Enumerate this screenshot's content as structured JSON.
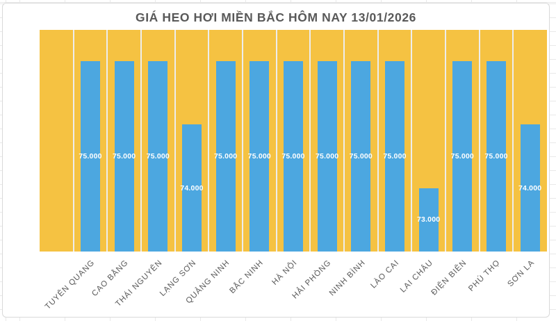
{
  "chart_data": {
    "type": "bar",
    "title": "GIÁ HEO HƠI MIỀN BẮC HÔM NAY 13/01/2026",
    "categories": [
      "TUYÊN QUANG",
      "CAO BẰNG",
      "THÁI NGUYÊN",
      "LẠNG SƠN",
      "QUẢNG NINH",
      "BẮC NINH",
      "HÀ NỘI",
      "HẢI PHÒNG",
      "NINH BÌNH",
      "LÀO CAI",
      "LAI CHÂU",
      "ĐIỆN BIÊN",
      "PHÚ THỌ",
      "SƠN LA"
    ],
    "values": [
      75000,
      75000,
      75000,
      74000,
      75000,
      75000,
      75000,
      75000,
      75000,
      75000,
      73000,
      75000,
      75000,
      74000
    ],
    "data_labels": [
      "75.000",
      "75.000",
      "75.000",
      "74.000",
      "75.000",
      "75.000",
      "75.000",
      "75.000",
      "75.000",
      "75.000",
      "73.000",
      "75.000",
      "75.000",
      "74.000"
    ],
    "data_label_position": "inside-center",
    "xlabel": "",
    "ylabel": "",
    "ylim": [
      72000,
      75494
    ],
    "value_axis_visible": false,
    "legend": "none",
    "grid": "vertical-category-separators",
    "leading_empty_band": true,
    "colors": {
      "plot_background": "#F5C242",
      "bar": "#4CA7E0",
      "gridline": "#EDEDED",
      "title_text": "#595959",
      "category_text": "#595959",
      "data_label_text": "#FFFFFF"
    }
  }
}
